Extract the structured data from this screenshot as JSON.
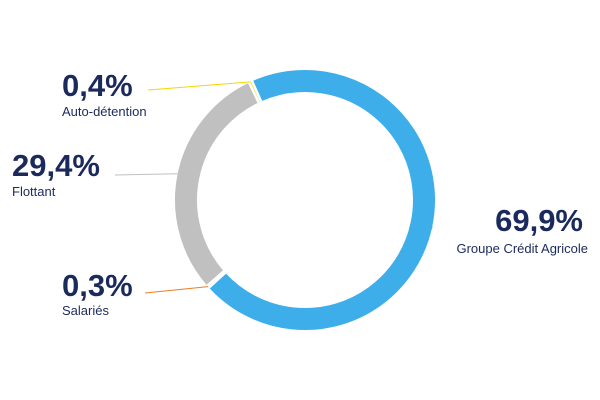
{
  "chart_data": {
    "type": "pie",
    "variant": "donut",
    "title": "",
    "slices": [
      {
        "label": "Groupe Crédit Agricole",
        "value": 69.9,
        "value_label": "69,9%",
        "color": "#3daee9"
      },
      {
        "label": "Salariés",
        "value": 0.3,
        "value_label": "0,3%",
        "color": "#f07c1e"
      },
      {
        "label": "Flottant",
        "value": 29.4,
        "value_label": "29,4%",
        "color": "#c0c0c0"
      },
      {
        "label": "Auto-détention",
        "value": 0.4,
        "value_label": "0,4%",
        "color": "#f5d800"
      }
    ],
    "label_text_color": "#1b2a5c",
    "legend": "none"
  }
}
